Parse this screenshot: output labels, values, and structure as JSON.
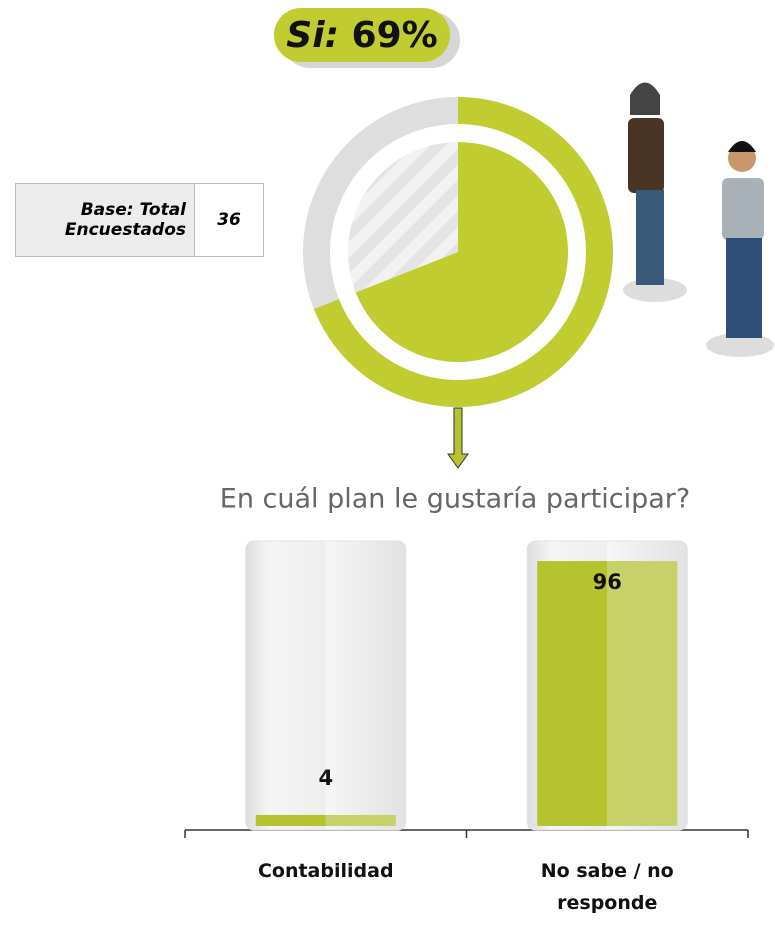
{
  "chart_data": [
    {
      "type": "donut",
      "label": "Si:",
      "values": [
        69
      ],
      "value_labels": [
        "69%"
      ],
      "color": "#c0cc2f"
    },
    {
      "type": "bar",
      "title": "En cuál plan le gustaría participar?",
      "categories": [
        "Contabilidad",
        "No sabe / no responde"
      ],
      "values": [
        4,
        96
      ],
      "ylim": [
        0,
        100
      ],
      "color": "#b5c42e"
    }
  ],
  "base_table": {
    "label": "Base: Total Encuestados",
    "value": 36
  }
}
